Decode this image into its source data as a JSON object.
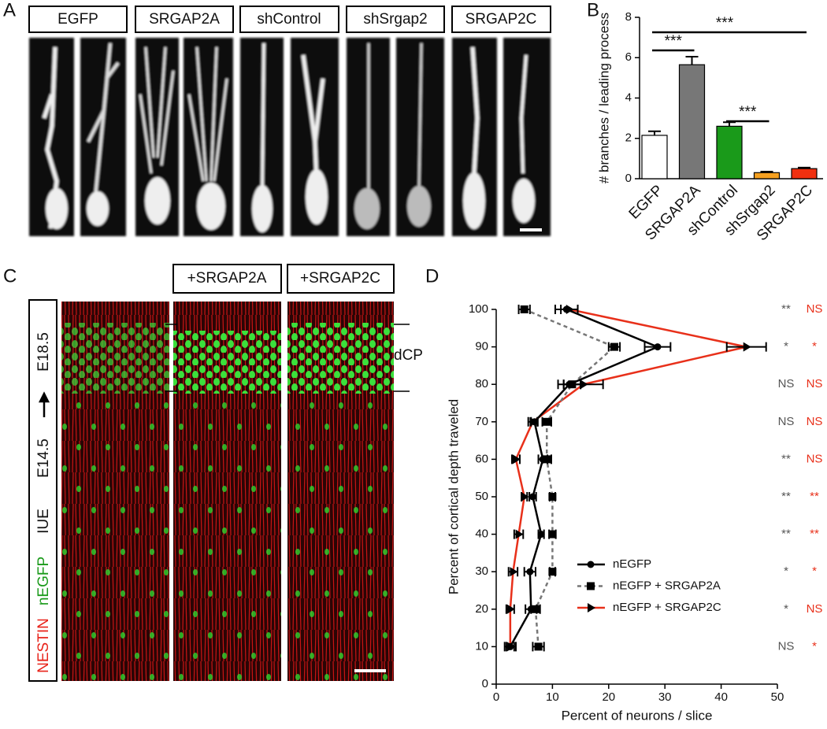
{
  "panels": [
    "A",
    "B",
    "C",
    "D"
  ],
  "panel_a": [
    "EGFP",
    "SRGAP2A",
    "shControl",
    "shSrgap2",
    "SRGAP2C"
  ],
  "panel_c": {
    "labels": [
      "+SRGAP2A",
      "+SRGAP2C"
    ],
    "side_labels": [
      "E18.5",
      "E14.5",
      "IUE",
      "nEGFP",
      "NESTIN"
    ],
    "region": "dCP"
  },
  "chart_data": [
    {
      "type": "bar",
      "ylabel": "# branches / leading process",
      "categories": [
        "EGFP",
        "SRGAP2A",
        "shControl",
        "shSrgap2",
        "SRGAP2C"
      ],
      "values": [
        2.15,
        5.65,
        2.6,
        0.3,
        0.5
      ],
      "errors": [
        0.2,
        0.4,
        0.2,
        0.05,
        0.05
      ],
      "colors": [
        "#ffffff",
        "#777777",
        "#1a9a1a",
        "#f5a020",
        "#f03010"
      ],
      "ylim": [
        0,
        8
      ],
      "yticks": [
        0,
        2,
        4,
        6,
        8
      ],
      "significance": [
        "***",
        "***",
        "***"
      ]
    },
    {
      "type": "line",
      "xlabel": "Percent of neurons / slice",
      "ylabel": "Percent of cortical depth traveled",
      "y": [
        100,
        90,
        80,
        70,
        60,
        50,
        40,
        30,
        20,
        10
      ],
      "series": [
        {
          "name": "nEGFP",
          "color": "#000000",
          "marker": "circle",
          "dashed": false,
          "values": [
            12.5,
            28.7,
            13,
            6.8,
            8.3,
            6.5,
            8,
            6,
            6.2,
            2.5
          ],
          "errors": [
            2,
            2.3,
            2,
            0.6,
            0.8,
            0.6,
            0.5,
            1,
            1,
            1
          ]
        },
        {
          "name": "nEGFP + SRGAP2A",
          "color": "#777777",
          "marker": "square",
          "dashed": true,
          "values": [
            5,
            21,
            13.5,
            9,
            9,
            10,
            10,
            10,
            7,
            7.5
          ],
          "errors": [
            1,
            1,
            1.5,
            0.8,
            0.8,
            0.5,
            0.6,
            0.5,
            0.8,
            1
          ]
        },
        {
          "name": "nEGFP + SRGAP2C",
          "color": "#e8301a",
          "marker": "triangle",
          "dashed": false,
          "values": [
            13,
            44.5,
            15.5,
            6.5,
            3.5,
            5,
            4,
            3,
            2.5,
            2.5
          ],
          "errors": [
            1.5,
            3.5,
            3.5,
            0.8,
            0.7,
            0.5,
            0.8,
            0.8,
            0.7,
            0.7
          ]
        }
      ],
      "xlim": [
        0,
        50
      ],
      "xticks": [
        0,
        10,
        20,
        30,
        40,
        50
      ],
      "ylim": [
        0,
        100
      ],
      "yticks": [
        0,
        10,
        20,
        30,
        40,
        50,
        60,
        70,
        80,
        90,
        100
      ],
      "significance": [
        [
          "**",
          "*",
          "NS",
          "NS",
          "**",
          "**",
          "**",
          "*",
          "*",
          "NS"
        ],
        [
          "NS",
          "*",
          "NS",
          "NS",
          "NS",
          "**",
          "**",
          "*",
          "NS",
          "*"
        ]
      ],
      "significance_colors": [
        "#555555",
        "#e8301a"
      ]
    }
  ]
}
